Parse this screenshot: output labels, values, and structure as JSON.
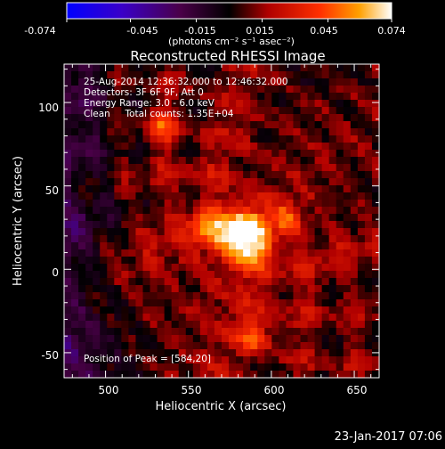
{
  "colorbar": {
    "ticks": [
      "-0.074",
      "-0.045",
      "-0.015",
      "0.015",
      "0.045",
      "0.074"
    ],
    "unit": "(photons cm⁻² s⁻¹ asec⁻²)",
    "range": [
      -0.074,
      0.074
    ]
  },
  "chart_data": {
    "type": "heatmap",
    "title": "Reconstructed RHESSI Image",
    "xlabel": "Heliocentric X (arcsec)",
    "ylabel": "Heliocentric Y (arcsec)",
    "xlim": [
      475,
      665
    ],
    "ylim": [
      -65,
      123
    ],
    "x_ticks": [
      "500",
      "550",
      "600",
      "650"
    ],
    "y_ticks": [
      "-50",
      "0",
      "50",
      "100"
    ],
    "annotations": [
      "25-Aug-2014 12:36:32.000 to 12:46:32.000",
      "Detectors: 3F 6F 9F, Att 0",
      "Energy Range: 3.0 - 6.0 keV",
      "Clean     Total counts: 1.35E+04"
    ],
    "peak_label": "Position of Peak = [584,20]",
    "peak": [
      584,
      20
    ],
    "secondary_sources": [
      [
        560,
        25
      ],
      [
        590,
        -40
      ],
      [
        535,
        85
      ],
      [
        610,
        30
      ]
    ],
    "value_range": [
      -0.074,
      0.074
    ]
  },
  "footer": {
    "timestamp": "23-Jan-2017 07:06"
  }
}
